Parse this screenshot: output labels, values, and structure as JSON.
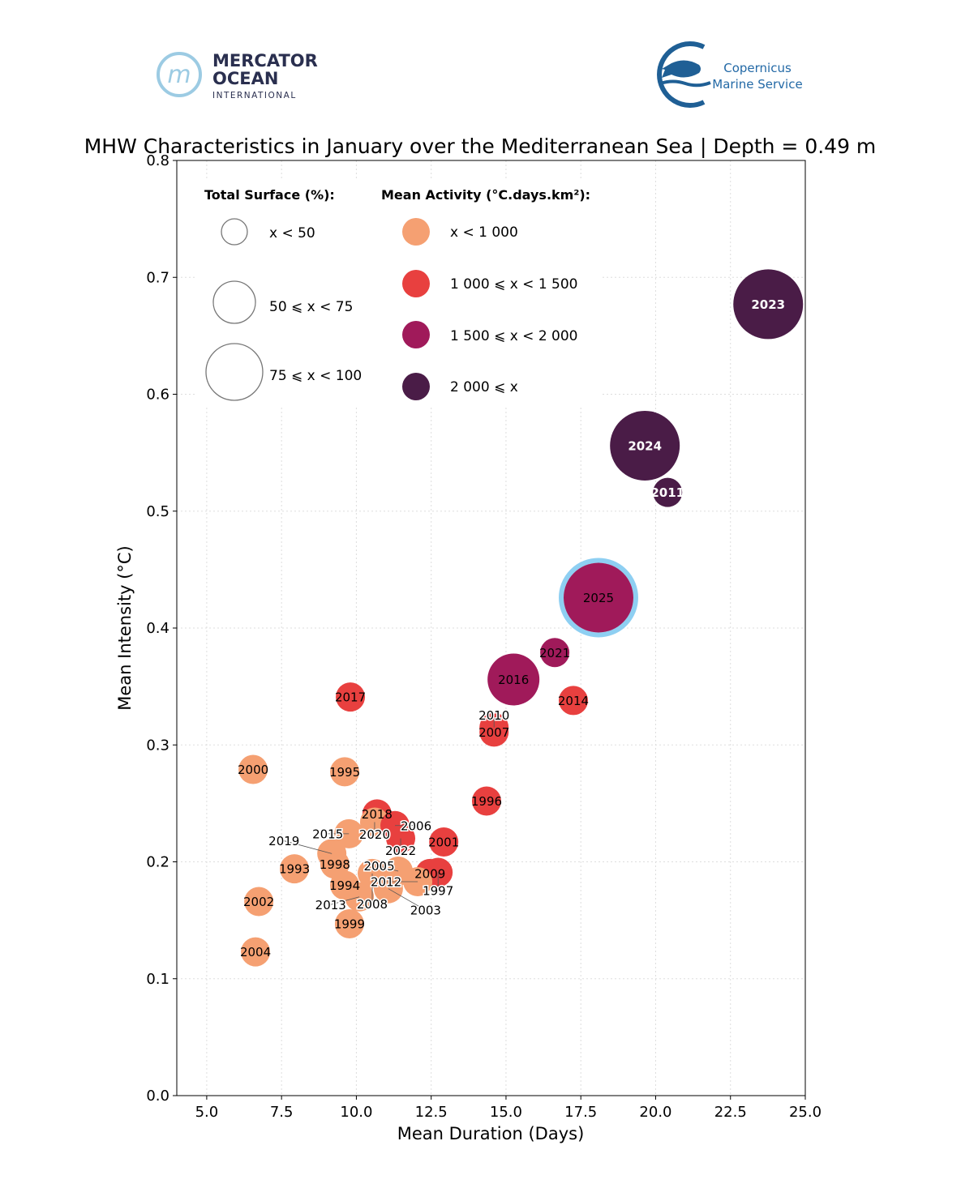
{
  "logos": {
    "mercator": {
      "line1": "MERCATOR",
      "line2": "OCEAN",
      "line3": "INTERNATIONAL"
    },
    "copernicus": {
      "line1": "Copernicus",
      "line2": "Marine Service"
    }
  },
  "colors": {
    "low": "#f5a072",
    "mid": "#e8403f",
    "high": "#a01a5a",
    "vhigh": "#4a1c47",
    "highlight": "#8ecff2"
  },
  "chart_data": {
    "type": "scatter",
    "title": "MHW Characteristics in January over the Mediterranean Sea | Depth = 0.49 m",
    "xlabel": "Mean Duration (Days)",
    "ylabel": "Mean Intensity (°C)",
    "xlim": [
      4,
      25
    ],
    "ylim": [
      0,
      0.8
    ],
    "xticks": [
      "5.0",
      "7.5",
      "10.0",
      "12.5",
      "15.0",
      "17.5",
      "20.0",
      "22.5",
      "25.0"
    ],
    "yticks": [
      "0.0",
      "0.1",
      "0.2",
      "0.3",
      "0.4",
      "0.5",
      "0.6",
      "0.7",
      "0.8"
    ],
    "grid": true,
    "legend": {
      "placement": "top-left",
      "size_title": "Total Surface (%):",
      "size_entries": [
        "x < 50",
        "50 ⩽ x < 75",
        "75 ⩽ x < 100"
      ],
      "color_title": "Mean Activity (°C.days.km²):",
      "color_entries": [
        "x < 1 000",
        "1 000 ⩽ x < 1 500",
        "1 500 ⩽ x < 2 000",
        "2 000 ⩽ x"
      ]
    },
    "points": [
      {
        "label": "1993",
        "x": 7.93,
        "y": 0.194,
        "surface": 0,
        "activity": 0
      },
      {
        "label": "1994",
        "x": 9.61,
        "y": 0.18,
        "surface": 0,
        "activity": 0
      },
      {
        "label": "1995",
        "x": 9.61,
        "y": 0.277,
        "surface": 0,
        "activity": 0
      },
      {
        "label": "1996",
        "x": 14.35,
        "y": 0.252,
        "surface": 0,
        "activity": 1
      },
      {
        "label": "1998",
        "x": 9.28,
        "y": 0.198,
        "surface": 0,
        "activity": 0
      },
      {
        "label": "1999",
        "x": 9.77,
        "y": 0.147,
        "surface": 0,
        "activity": 0
      },
      {
        "label": "2000",
        "x": 6.55,
        "y": 0.279,
        "surface": 0,
        "activity": 0
      },
      {
        "label": "2001",
        "x": 12.92,
        "y": 0.217,
        "surface": 0,
        "activity": 1
      },
      {
        "label": "2002",
        "x": 6.74,
        "y": 0.166,
        "surface": 0,
        "activity": 0
      },
      {
        "label": "2004",
        "x": 6.63,
        "y": 0.123,
        "surface": 0,
        "activity": 0
      },
      {
        "label": "2007",
        "x": 14.6,
        "y": 0.311,
        "surface": 0,
        "activity": 1
      },
      {
        "label": "2010",
        "x": 14.6,
        "y": 0.315,
        "surface": 0,
        "activity": 1
      },
      {
        "label": "2009",
        "x": 12.46,
        "y": 0.19,
        "surface": 0,
        "activity": 1
      },
      {
        "label": "1997",
        "x": 12.73,
        "y": 0.191,
        "surface": 0,
        "activity": 1
      },
      {
        "label": "2012",
        "x": 12.05,
        "y": 0.183,
        "surface": 0,
        "activity": 0
      },
      {
        "label": "2018",
        "x": 10.69,
        "y": 0.241,
        "surface": 0,
        "activity": 1
      },
      {
        "label": "2020",
        "x": 10.61,
        "y": 0.234,
        "surface": 0,
        "activity": 0
      },
      {
        "label": "2006",
        "x": 11.29,
        "y": 0.231,
        "surface": 0,
        "activity": 1
      },
      {
        "label": "2022",
        "x": 11.48,
        "y": 0.22,
        "surface": 0,
        "activity": 1
      },
      {
        "label": "2015",
        "x": 9.75,
        "y": 0.224,
        "surface": 0,
        "activity": 0
      },
      {
        "label": "2019",
        "x": 9.18,
        "y": 0.207,
        "surface": 0,
        "activity": 0
      },
      {
        "label": "2008",
        "x": 10.53,
        "y": 0.19,
        "surface": 0,
        "activity": 0
      },
      {
        "label": "2005",
        "x": 11.4,
        "y": 0.192,
        "surface": 0,
        "activity": 0
      },
      {
        "label": "2003",
        "x": 11.07,
        "y": 0.177,
        "surface": 0,
        "activity": 0
      },
      {
        "label": "2013",
        "x": 10.1,
        "y": 0.17,
        "surface": 0,
        "activity": 0
      },
      {
        "label": "2014",
        "x": 17.25,
        "y": 0.338,
        "surface": 0,
        "activity": 1
      },
      {
        "label": "2017",
        "x": 9.8,
        "y": 0.341,
        "surface": 0,
        "activity": 1
      },
      {
        "label": "2016",
        "x": 15.25,
        "y": 0.356,
        "surface": 1,
        "activity": 2
      },
      {
        "label": "2021",
        "x": 16.63,
        "y": 0.379,
        "surface": 0,
        "activity": 2
      },
      {
        "label": "2025",
        "x": 18.09,
        "y": 0.426,
        "surface": 2,
        "activity": 2,
        "highlight": true
      },
      {
        "label": "2011",
        "x": 20.4,
        "y": 0.516,
        "surface": 0,
        "activity": 3
      },
      {
        "label": "2024",
        "x": 19.64,
        "y": 0.556,
        "surface": 2,
        "activity": 3
      },
      {
        "label": "2023",
        "x": 23.76,
        "y": 0.677,
        "surface": 2,
        "activity": 3
      }
    ]
  }
}
